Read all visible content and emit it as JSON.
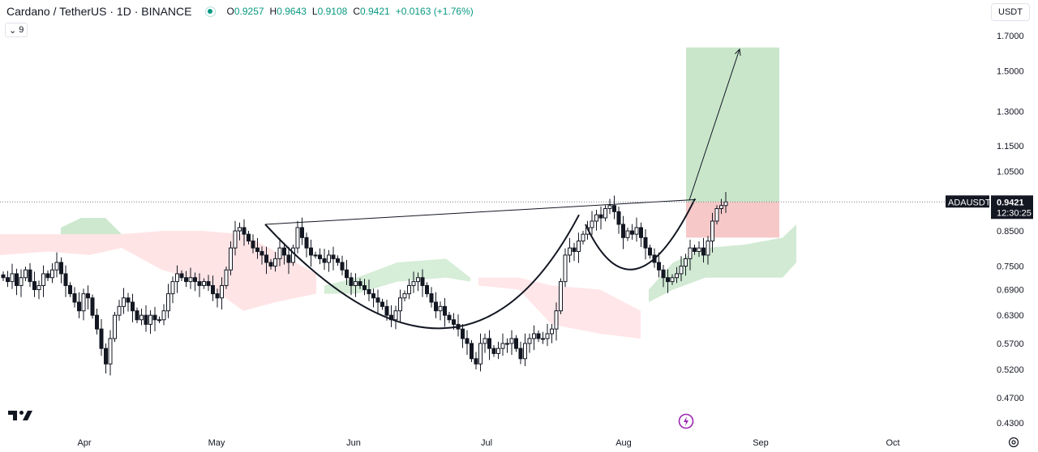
{
  "header": {
    "title": "Cardano / TetherUS · 1D · BINANCE",
    "open_label": "O",
    "open": "0.9257",
    "high_label": "H",
    "high": "0.9643",
    "low_label": "L",
    "low": "0.9108",
    "close_label": "C",
    "close": "0.9421",
    "change": "+0.0163 (+1.76%)"
  },
  "indicators_toggle": {
    "count": "9"
  },
  "currency": "USDT",
  "price_label": {
    "symbol": "ADAUSDT",
    "price": "0.9421",
    "countdown": "12:30:25"
  },
  "colors": {
    "up": "#089981",
    "body": "#000000",
    "cloud_bull": "#a5d6a7",
    "cloud_bear": "#ffcdd2",
    "target_zone": "#a5d6a7",
    "stop_zone": "#ef9a9a",
    "accent": "#9c27b0"
  },
  "chart_data": {
    "type": "candlestick",
    "scale": "log",
    "ylim": [
      0.4,
      1.8
    ],
    "y_ticks": [
      "1.7000",
      "1.5000",
      "1.3000",
      "1.1500",
      "1.0500",
      "0.8500",
      "0.7500",
      "0.6900",
      "0.6300",
      "0.5700",
      "0.5200",
      "0.4700",
      "0.4300"
    ],
    "x_labels": [
      "Apr",
      "May",
      "Jun",
      "Jul",
      "Aug",
      "Sep",
      "Oct"
    ],
    "last_price": 0.9421,
    "close": [
      0.72,
      0.71,
      0.73,
      0.7,
      0.72,
      0.74,
      0.71,
      0.69,
      0.7,
      0.73,
      0.72,
      0.74,
      0.76,
      0.73,
      0.7,
      0.68,
      0.66,
      0.64,
      0.68,
      0.67,
      0.63,
      0.6,
      0.56,
      0.53,
      0.58,
      0.63,
      0.65,
      0.67,
      0.66,
      0.64,
      0.62,
      0.63,
      0.61,
      0.63,
      0.62,
      0.62,
      0.64,
      0.68,
      0.71,
      0.73,
      0.72,
      0.71,
      0.72,
      0.71,
      0.7,
      0.71,
      0.7,
      0.68,
      0.67,
      0.7,
      0.74,
      0.8,
      0.85,
      0.86,
      0.84,
      0.82,
      0.8,
      0.79,
      0.78,
      0.76,
      0.75,
      0.77,
      0.8,
      0.78,
      0.76,
      0.8,
      0.86,
      0.83,
      0.8,
      0.78,
      0.78,
      0.77,
      0.76,
      0.78,
      0.77,
      0.76,
      0.74,
      0.72,
      0.7,
      0.71,
      0.7,
      0.69,
      0.68,
      0.67,
      0.66,
      0.65,
      0.63,
      0.62,
      0.64,
      0.67,
      0.68,
      0.7,
      0.71,
      0.72,
      0.7,
      0.68,
      0.66,
      0.64,
      0.65,
      0.63,
      0.62,
      0.61,
      0.6,
      0.58,
      0.57,
      0.54,
      0.53,
      0.57,
      0.58,
      0.56,
      0.55,
      0.56,
      0.57,
      0.57,
      0.58,
      0.56,
      0.54,
      0.57,
      0.58,
      0.59,
      0.58,
      0.58,
      0.59,
      0.6,
      0.64,
      0.71,
      0.78,
      0.8,
      0.79,
      0.82,
      0.84,
      0.86,
      0.88,
      0.9,
      0.89,
      0.92,
      0.93,
      0.91,
      0.87,
      0.83,
      0.85,
      0.84,
      0.86,
      0.83,
      0.8,
      0.78,
      0.76,
      0.74,
      0.72,
      0.71,
      0.72,
      0.73,
      0.75,
      0.77,
      0.8,
      0.79,
      0.8,
      0.78,
      0.82,
      0.88,
      0.92,
      0.93,
      0.9421
    ]
  },
  "annotations": {
    "neckline": [
      0.87,
      0.95
    ],
    "cup_bottom": 0.5,
    "handle_bottom": 0.68,
    "entry": 0.9421,
    "target": 1.63,
    "stop": 0.83,
    "arrow_target": 1.62
  }
}
